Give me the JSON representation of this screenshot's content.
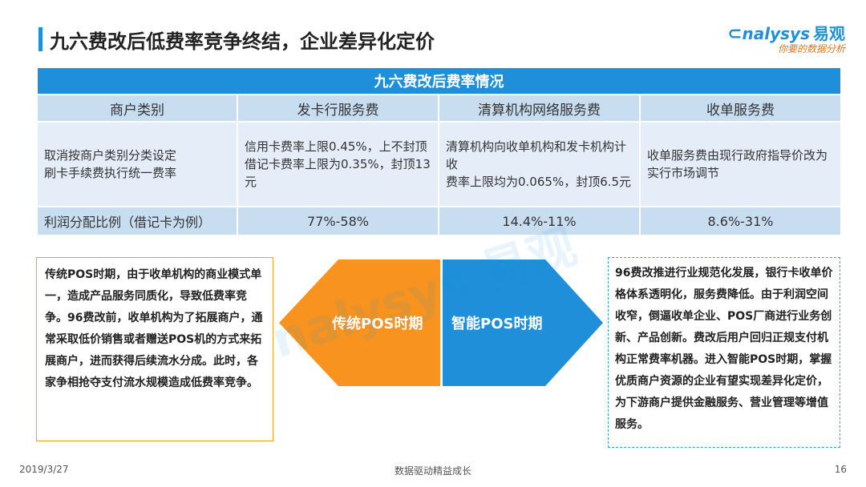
{
  "header": {
    "title": "九六费改后低费率竞争终结，企业差异化定价",
    "logo_text": "nalysys",
    "logo_cn": "易观",
    "logo_slogan": "你要的数据分析"
  },
  "table": {
    "caption": "九六费改后费率情况",
    "columns": [
      "商户类别",
      "发卡行服务费",
      "清算机构网络服务费",
      "收单服务费"
    ],
    "rows": [
      {
        "cells": [
          "取消按商户类别分类设定\n刷卡手续费执行统一费率",
          "信用卡费率上限0.45%，上不封顶\n借记卡费率上限为0.35%，封顶13元",
          "清算机构向收单机构和发卡机构计收\n费率上限均为0.065%，封顶6.5元",
          "收单服务费由现行政府指导价改为实行市场调节"
        ]
      },
      {
        "cells": [
          "利润分配比例（借记卡为例）",
          "77%-58%",
          "14.4%-11%",
          "8.6%-31%"
        ]
      }
    ]
  },
  "left_box": {
    "text": "传统POS时期，由于收单机构的商业模式单一，造成产品服务同质化，导致低费率竞争。96费改前，收单机构为了拓展商户，通常采取低价销售或者赠送POS机的方式来拓展商户，进而获得后续流水分成。此时，各家争相抢夺支付流水规模造成低费率竞争。"
  },
  "arrows": {
    "left_label": "传统POS时期",
    "right_label": "智能POS时期",
    "left_color": "#F7931E",
    "right_color": "#1E8FD8"
  },
  "right_box": {
    "text": "96费改推进行业规范化发展，银行卡收单价格体系透明化，服务费降低。由于利润空间收窄，倒逼收单企业、POS厂商进行业务创新、产品创新。费改后用户回归正规支付机构正常费率机器。进入智能POS时期，掌握优质商户资源的企业有望实现差异化定价，为下游商户提供金融服务、营业管理等增值服务。"
  },
  "footer": {
    "date": "2019/3/27",
    "slogan": "数据驱动精益成长",
    "page": "16"
  },
  "colors": {
    "brand_blue": "#1E8FD8",
    "header_cell": "#C9DDF1",
    "body_cell": "#E4EDF8",
    "orange": "#F7931E"
  }
}
